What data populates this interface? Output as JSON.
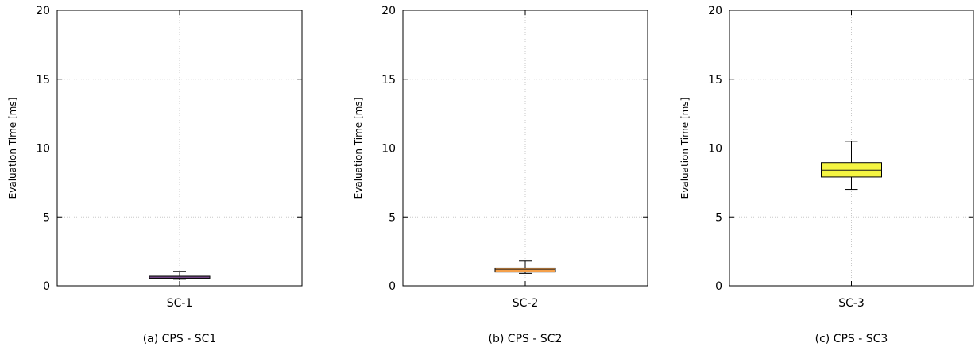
{
  "chart_data": [
    {
      "type": "box",
      "caption": "(a) CPS - SC1",
      "ylabel": "Evaluation Time [ms]",
      "ylim": [
        0,
        20
      ],
      "yticks": [
        "0",
        "5",
        "10",
        "15",
        "20"
      ],
      "categories": [
        "SC-1"
      ],
      "grid": true,
      "color": "#9b59b6",
      "median_color": "#1a1a1a",
      "box": {
        "whisker_low": 0.45,
        "q1": 0.55,
        "median": 0.65,
        "q3": 0.75,
        "whisker_high": 1.05
      }
    },
    {
      "type": "box",
      "caption": "(b) CPS - SC2",
      "ylabel": "Evaluation Time [ms]",
      "ylim": [
        0,
        20
      ],
      "yticks": [
        "0",
        "5",
        "10",
        "15",
        "20"
      ],
      "categories": [
        "SC-2"
      ],
      "grid": true,
      "color": "#f5a04a",
      "median_color": "#1a1a1a",
      "box": {
        "whisker_low": 0.9,
        "q1": 1.0,
        "median": 1.2,
        "q3": 1.3,
        "whisker_high": 1.8
      }
    },
    {
      "type": "box",
      "caption": "(c) CPS - SC3",
      "ylabel": "Evaluation Time [ms]",
      "ylim": [
        0,
        20
      ],
      "yticks": [
        "0",
        "5",
        "10",
        "15",
        "20"
      ],
      "categories": [
        "SC-3"
      ],
      "grid": true,
      "color": "#f5f542",
      "median_color": "#1a1a1a",
      "box": {
        "whisker_low": 7.0,
        "q1": 7.9,
        "median": 8.4,
        "q3": 8.95,
        "whisker_high": 10.5
      }
    }
  ]
}
